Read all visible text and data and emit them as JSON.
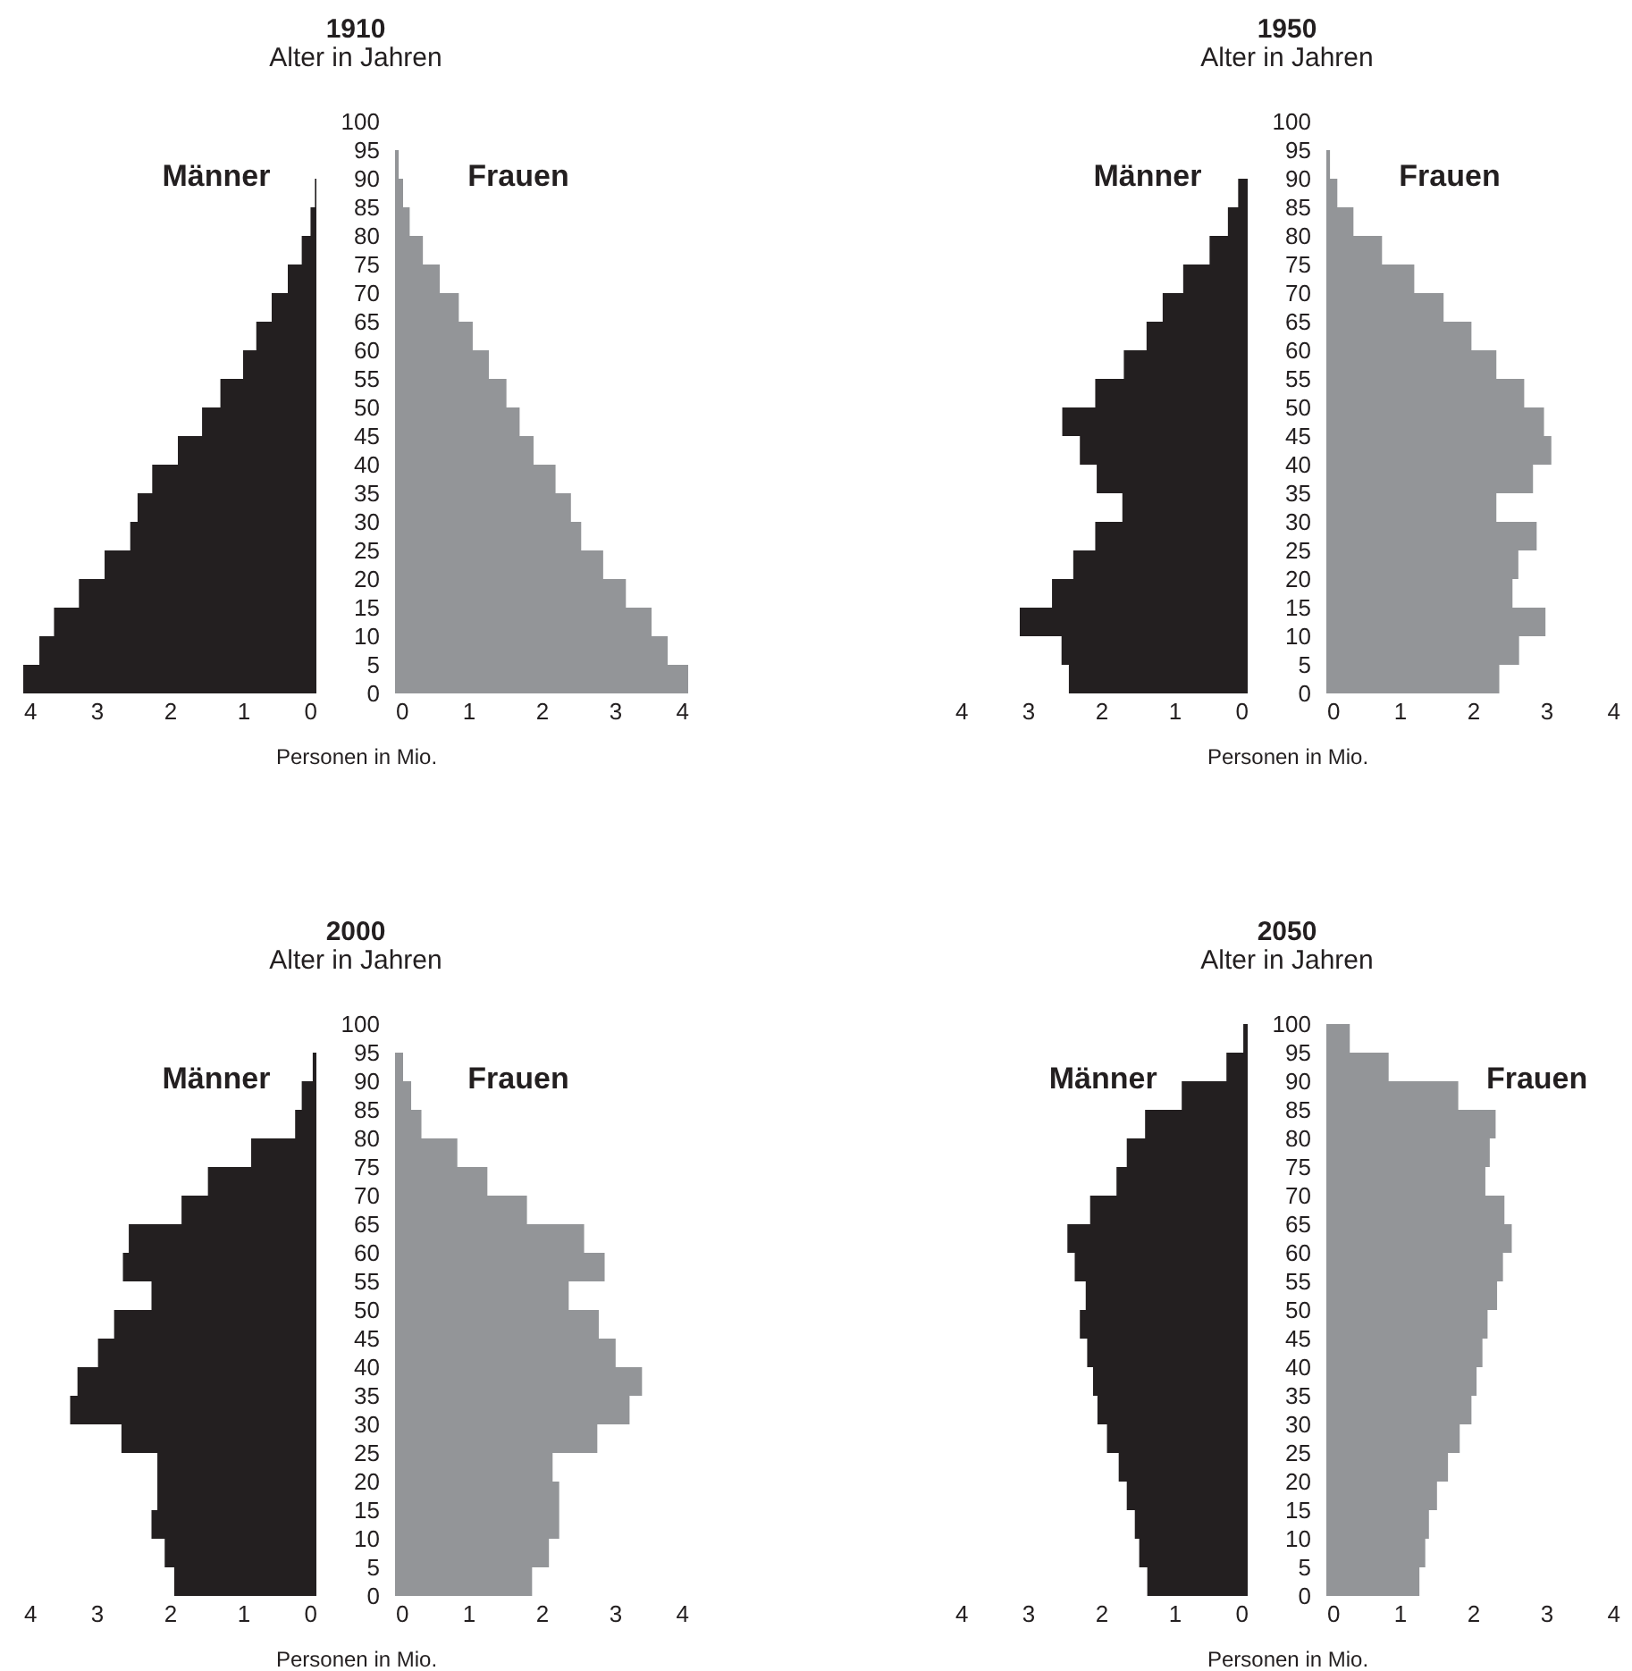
{
  "chart_data": [
    {
      "type": "histogram",
      "orientation": "horizontal",
      "bins": [
        0,
        5,
        10,
        15,
        20,
        25,
        30,
        35,
        40,
        45,
        50,
        55,
        60,
        65,
        70,
        75,
        80,
        85,
        90,
        95,
        100
      ],
      "series": [
        {
          "name": "Männer",
          "color": "#231f20",
          "values": [
            4.0,
            3.78,
            3.58,
            3.24,
            2.89,
            2.54,
            2.44,
            2.24,
            1.89,
            1.56,
            1.31,
            1.0,
            0.82,
            0.61,
            0.39,
            0.2,
            0.08,
            0.02,
            0,
            0
          ]
        }
      ],
      "xlim": [
        4,
        0
      ],
      "xticks": [
        4,
        3,
        2,
        1,
        0
      ],
      "ylim": [
        0,
        100
      ],
      "yticks": [
        0,
        5,
        10,
        15,
        20,
        25,
        30,
        35,
        40,
        45,
        50,
        55,
        60,
        65,
        70,
        75,
        80,
        85,
        90,
        95,
        100
      ],
      "tick_labels": "x"
    },
    {
      "type": "histogram",
      "orientation": "horizontal",
      "title": "1910",
      "subtitle": "Alter in Jahren",
      "xlabel": "Personen in Mio.",
      "bins": [
        0,
        5,
        10,
        15,
        20,
        25,
        30,
        35,
        40,
        45,
        50,
        55,
        60,
        65,
        70,
        75,
        80,
        85,
        90,
        95,
        100
      ],
      "series": [
        {
          "name": "Frauen",
          "color": "#939598",
          "values": [
            4.0,
            3.72,
            3.5,
            3.15,
            2.84,
            2.54,
            2.4,
            2.19,
            1.89,
            1.7,
            1.52,
            1.28,
            1.06,
            0.87,
            0.61,
            0.38,
            0.2,
            0.11,
            0.05,
            0
          ]
        }
      ],
      "xlim": [
        0,
        4
      ],
      "xticks": [
        0,
        1,
        2,
        3,
        4
      ],
      "ylim": [
        0,
        100
      ],
      "yticks": [
        0,
        5,
        10,
        15,
        20,
        25,
        30,
        35,
        40,
        45,
        50,
        55,
        60,
        65,
        70,
        75,
        80,
        85,
        90,
        95,
        100
      ]
    },
    {
      "type": "histogram",
      "orientation": "horizontal",
      "bins": [
        0,
        5,
        10,
        15,
        20,
        25,
        30,
        35,
        40,
        45,
        50,
        55,
        60,
        65,
        70,
        75,
        80,
        85,
        90,
        95,
        100
      ],
      "series": [
        {
          "name": "Männer",
          "color": "#231f20",
          "values": [
            2.44,
            2.54,
            3.11,
            2.67,
            2.38,
            2.08,
            1.71,
            2.06,
            2.29,
            2.53,
            2.08,
            1.69,
            1.38,
            1.16,
            0.88,
            0.52,
            0.27,
            0.13,
            0,
            0
          ]
        }
      ],
      "xlim": [
        4,
        0
      ],
      "xticks": [
        4,
        3,
        2,
        1,
        0
      ],
      "ylim": [
        0,
        100
      ],
      "yticks": [
        0,
        5,
        10,
        15,
        20,
        25,
        30,
        35,
        40,
        45,
        50,
        55,
        60,
        65,
        70,
        75,
        80,
        85,
        90,
        95,
        100
      ],
      "tick_labels": "x"
    },
    {
      "type": "histogram",
      "orientation": "horizontal",
      "title": "1950",
      "subtitle": "Alter in Jahren",
      "xlabel": "Personen in Mio.",
      "bins": [
        0,
        5,
        10,
        15,
        20,
        25,
        30,
        35,
        40,
        45,
        50,
        55,
        60,
        65,
        70,
        75,
        80,
        85,
        90,
        95,
        100
      ],
      "series": [
        {
          "name": "Frauen",
          "color": "#939598",
          "values": [
            2.36,
            2.63,
            2.99,
            2.54,
            2.62,
            2.87,
            2.32,
            2.82,
            3.07,
            2.97,
            2.7,
            2.32,
            1.98,
            1.6,
            1.2,
            0.76,
            0.37,
            0.15,
            0.05,
            0
          ]
        }
      ],
      "xlim": [
        0,
        4
      ],
      "xticks": [
        0,
        1,
        2,
        3,
        4
      ],
      "ylim": [
        0,
        100
      ],
      "yticks": [
        0,
        5,
        10,
        15,
        20,
        25,
        30,
        35,
        40,
        45,
        50,
        55,
        60,
        65,
        70,
        75,
        80,
        85,
        90,
        95,
        100
      ]
    },
    {
      "type": "histogram",
      "orientation": "horizontal",
      "bins": [
        0,
        5,
        10,
        15,
        20,
        25,
        30,
        35,
        40,
        45,
        50,
        55,
        60,
        65,
        70,
        75,
        80,
        85,
        90,
        95,
        100
      ],
      "series": [
        {
          "name": "Männer",
          "color": "#231f20",
          "values": [
            1.94,
            2.07,
            2.25,
            2.17,
            2.17,
            2.66,
            3.36,
            3.26,
            2.98,
            2.76,
            2.25,
            2.64,
            2.56,
            1.84,
            1.48,
            0.89,
            0.29,
            0.2,
            0.05,
            0
          ]
        }
      ],
      "xlim": [
        4,
        0
      ],
      "xticks": [
        4,
        3,
        2,
        1,
        0
      ],
      "ylim": [
        0,
        100
      ],
      "yticks": [
        0,
        5,
        10,
        15,
        20,
        25,
        30,
        35,
        40,
        45,
        50,
        55,
        60,
        65,
        70,
        75,
        80,
        85,
        90,
        95,
        100
      ],
      "tick_labels": "x"
    },
    {
      "type": "histogram",
      "orientation": "horizontal",
      "title": "2000",
      "subtitle": "Alter in Jahren",
      "xlabel": "Personen in Mio.",
      "bins": [
        0,
        5,
        10,
        15,
        20,
        25,
        30,
        35,
        40,
        45,
        50,
        55,
        60,
        65,
        70,
        75,
        80,
        85,
        90,
        95,
        100
      ],
      "series": [
        {
          "name": "Frauen",
          "color": "#939598",
          "values": [
            1.87,
            2.1,
            2.24,
            2.24,
            2.15,
            2.76,
            3.2,
            3.37,
            3.01,
            2.78,
            2.37,
            2.86,
            2.58,
            1.8,
            1.26,
            0.85,
            0.36,
            0.22,
            0.11,
            0
          ]
        }
      ],
      "xlim": [
        0,
        4
      ],
      "xticks": [
        0,
        1,
        2,
        3,
        4
      ],
      "ylim": [
        0,
        100
      ],
      "yticks": [
        0,
        5,
        10,
        15,
        20,
        25,
        30,
        35,
        40,
        45,
        50,
        55,
        60,
        65,
        70,
        75,
        80,
        85,
        90,
        95,
        100
      ]
    },
    {
      "type": "histogram",
      "orientation": "horizontal",
      "bins": [
        0,
        5,
        10,
        15,
        20,
        25,
        30,
        35,
        40,
        45,
        50,
        55,
        60,
        65,
        70,
        75,
        80,
        85,
        90,
        95,
        100
      ],
      "series": [
        {
          "name": "Männer",
          "color": "#231f20",
          "values": [
            1.37,
            1.48,
            1.54,
            1.65,
            1.76,
            1.92,
            2.05,
            2.11,
            2.19,
            2.29,
            2.21,
            2.36,
            2.46,
            2.15,
            1.79,
            1.65,
            1.4,
            0.9,
            0.29,
            0.06
          ]
        }
      ],
      "xlim": [
        4,
        0
      ],
      "xticks": [
        4,
        3,
        2,
        1,
        0
      ],
      "ylim": [
        0,
        100
      ],
      "yticks": [
        0,
        5,
        10,
        15,
        20,
        25,
        30,
        35,
        40,
        45,
        50,
        55,
        60,
        65,
        70,
        75,
        80,
        85,
        90,
        95,
        100
      ],
      "tick_labels": "x"
    },
    {
      "type": "histogram",
      "orientation": "horizontal",
      "title": "2050",
      "subtitle": "Alter in Jahren",
      "xlabel": "Personen in Mio.",
      "bins": [
        0,
        5,
        10,
        15,
        20,
        25,
        30,
        35,
        40,
        45,
        50,
        55,
        60,
        65,
        70,
        75,
        80,
        85,
        90,
        95,
        100
      ],
      "series": [
        {
          "name": "Frauen",
          "color": "#939598",
          "values": [
            1.27,
            1.35,
            1.4,
            1.51,
            1.66,
            1.82,
            1.98,
            2.05,
            2.13,
            2.2,
            2.33,
            2.41,
            2.53,
            2.43,
            2.17,
            2.23,
            2.31,
            1.8,
            0.85,
            0.32
          ]
        }
      ],
      "xlim": [
        0,
        4
      ],
      "xticks": [
        0,
        1,
        2,
        3,
        4
      ],
      "ylim": [
        0,
        100
      ],
      "yticks": [
        0,
        5,
        10,
        15,
        20,
        25,
        30,
        35,
        40,
        45,
        50,
        55,
        60,
        65,
        70,
        75,
        80,
        85,
        90,
        95,
        100
      ]
    }
  ]
}
